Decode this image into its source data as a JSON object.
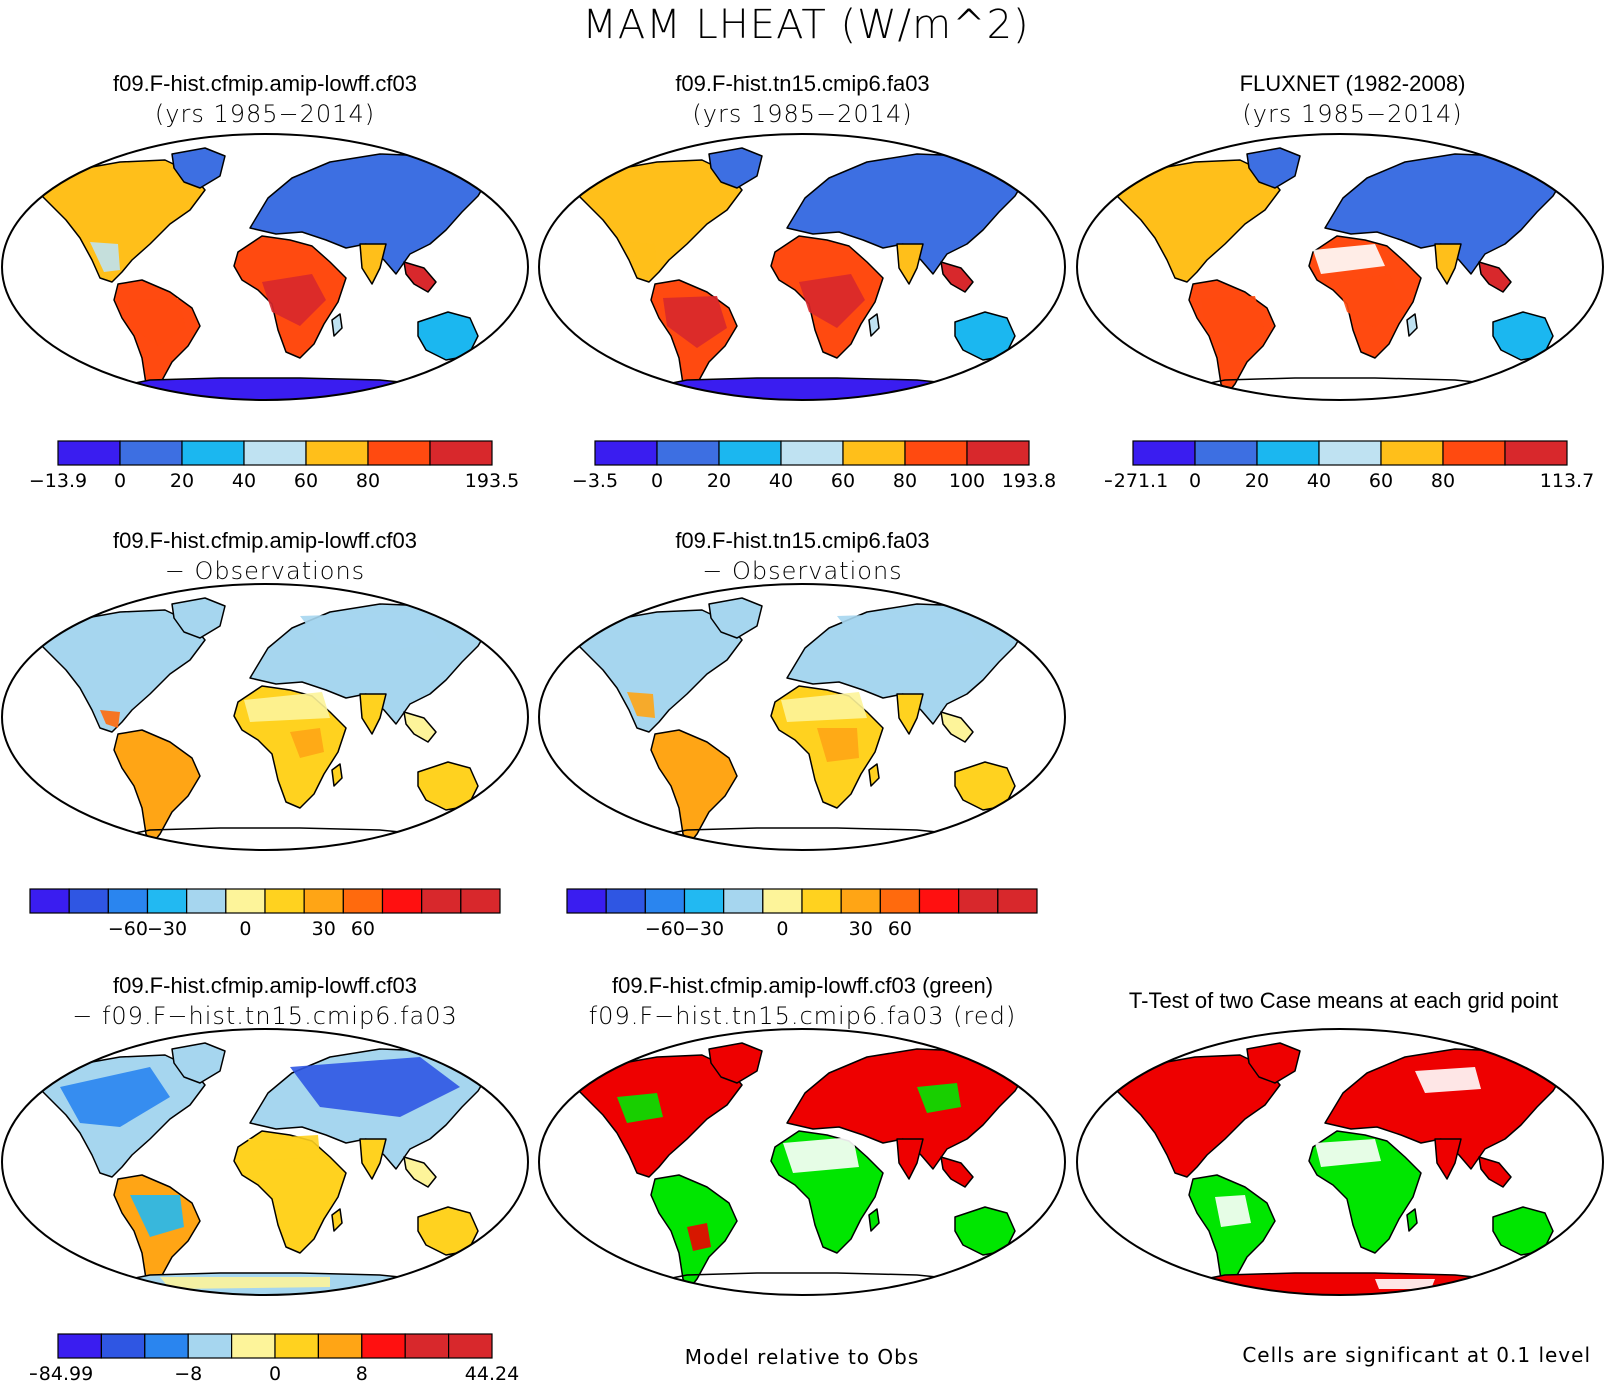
{
  "title": "MAM LHEAT (W/m^2)",
  "palettes": {
    "field": [
      "#3a1df0",
      "#3d6fe2",
      "#1bb7f0",
      "#bfe2f2",
      "#ffbf1a",
      "#ff4a10",
      "#d8282c"
    ],
    "diff": [
      "#3a1df0",
      "#2f56e3",
      "#2a85ef",
      "#22b9f2",
      "#a6d6ef",
      "#fdf49a",
      "#ffd21f",
      "#ffa515",
      "#ff6a0d",
      "#ff1010",
      "#d8282c"
    ],
    "sig": {
      "case1": "#00e600",
      "case2": "#ee0000",
      "significant": "#ee0000"
    }
  },
  "panels": [
    {
      "id": "case1",
      "line1": "f09.F-hist.cfmip.amip-lowff.cf03",
      "line2": "(yrs 1985−2014)",
      "fill": "field",
      "antarctica": true,
      "colorbar": {
        "ticks": [
          "−13.9",
          "0",
          "20",
          "40",
          "60",
          "80",
          "193.5"
        ]
      }
    },
    {
      "id": "case2",
      "line1": "f09.F-hist.tn15.cmip6.fa03",
      "line2": "(yrs 1985−2014)",
      "fill": "field",
      "antarctica": true,
      "colorbar": {
        "ticks": [
          "−3.5",
          "0",
          "20",
          "40",
          "60",
          "80",
          "100",
          "193.8"
        ]
      }
    },
    {
      "id": "obs",
      "line1": "FLUXNET (1982-2008)",
      "line2": "(yrs 1985−2014)",
      "fill": "field",
      "antarctica": false,
      "colorbar": {
        "ticks": [
          "−271.1",
          "0",
          "20",
          "40",
          "60",
          "80",
          "113.7"
        ]
      }
    },
    {
      "id": "case1-obs",
      "line1": "f09.F-hist.cfmip.amip-lowff.cf03",
      "line2": "− Observations",
      "fill": "diff",
      "antarctica": false,
      "colorbar": {
        "ticks": [
          "−60",
          "−30",
          "0",
          "30",
          "60"
        ]
      }
    },
    {
      "id": "case2-obs",
      "line1": "f09.F-hist.tn15.cmip6.fa03",
      "line2": "− Observations",
      "fill": "diff",
      "antarctica": false,
      "colorbar": {
        "ticks": [
          "−60",
          "−30",
          "0",
          "30",
          "60"
        ]
      }
    },
    {
      "id": "case1-case2",
      "line1": "f09.F-hist.cfmip.amip-lowff.cf03",
      "line2": "− f09.F−hist.tn15.cmip6.fa03",
      "fill": "diff",
      "antarctica": true,
      "colorbar": {
        "ticks": [
          "−84.99",
          "−8",
          "0",
          "8",
          "44.24"
        ]
      }
    },
    {
      "id": "model-vs-obs",
      "line1": "f09.F-hist.cfmip.amip-lowff.cf03 (green)",
      "line2": "f09.F−hist.tn15.cmip6.fa03 (red)",
      "fill": "sig",
      "antarctica": false,
      "footer": "Model relative to Obs"
    },
    {
      "id": "ttest",
      "line1": "T-Test of two Case means at each grid point",
      "line2": "",
      "fill": "sig",
      "antarctica": true,
      "footer": "Cells are significant at 0.1 level"
    }
  ]
}
